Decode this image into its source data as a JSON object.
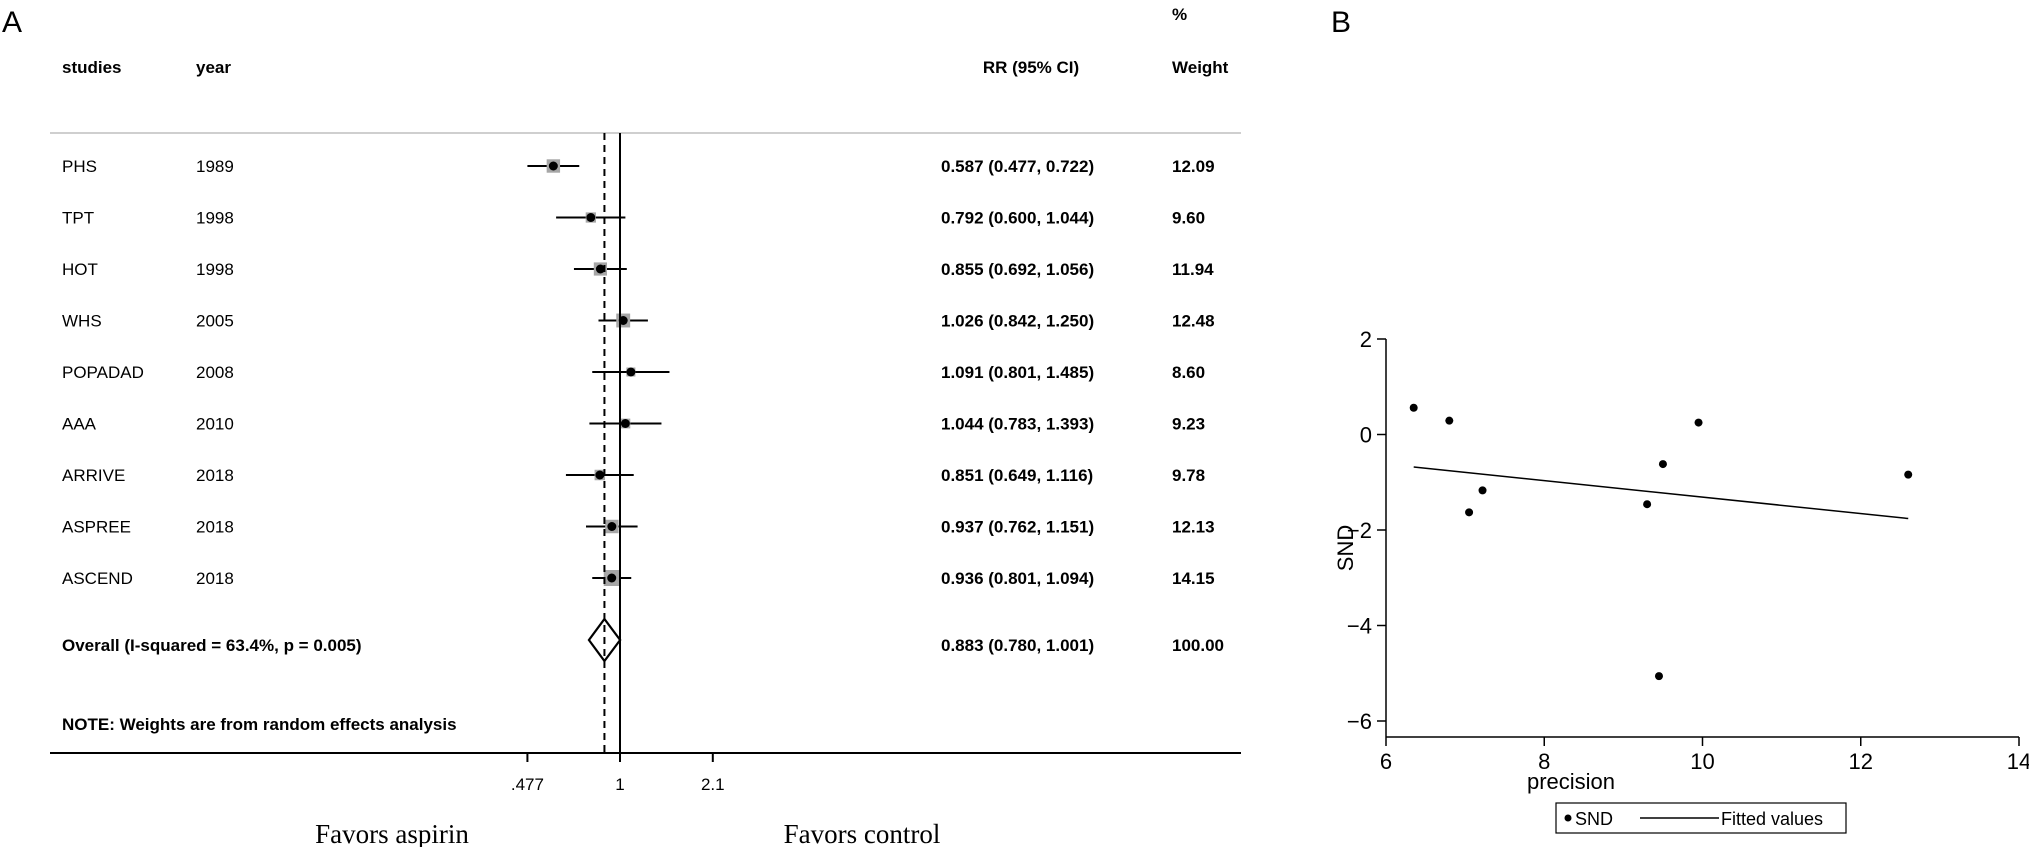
{
  "chart_data": [
    {
      "panel": "A",
      "type": "forest",
      "columns": {
        "studies": "studies",
        "year": "year",
        "rr": "RR (95% CI)",
        "weight_pct": "%",
        "weight": "Weight"
      },
      "rows": [
        {
          "study": "PHS",
          "year": "1989",
          "rr": 0.587,
          "lo": 0.477,
          "hi": 0.722,
          "rr_text": "0.587 (0.477, 0.722)",
          "weight": "12.09"
        },
        {
          "study": "TPT",
          "year": "1998",
          "rr": 0.792,
          "lo": 0.6,
          "hi": 1.044,
          "rr_text": "0.792 (0.600, 1.044)",
          "weight": "9.60"
        },
        {
          "study": "HOT",
          "year": "1998",
          "rr": 0.855,
          "lo": 0.692,
          "hi": 1.056,
          "rr_text": "0.855 (0.692, 1.056)",
          "weight": "11.94"
        },
        {
          "study": "WHS",
          "year": "2005",
          "rr": 1.026,
          "lo": 0.842,
          "hi": 1.25,
          "rr_text": "1.026 (0.842, 1.250)",
          "weight": "12.48"
        },
        {
          "study": "POPADAD",
          "year": "2008",
          "rr": 1.091,
          "lo": 0.801,
          "hi": 1.485,
          "rr_text": "1.091 (0.801, 1.485)",
          "weight": "8.60"
        },
        {
          "study": "AAA",
          "year": "2010",
          "rr": 1.044,
          "lo": 0.783,
          "hi": 1.393,
          "rr_text": "1.044 (0.783, 1.393)",
          "weight": "9.23"
        },
        {
          "study": "ARRIVE",
          "year": "2018",
          "rr": 0.851,
          "lo": 0.649,
          "hi": 1.116,
          "rr_text": "0.851 (0.649, 1.116)",
          "weight": "9.78"
        },
        {
          "study": "ASPREE",
          "year": "2018",
          "rr": 0.937,
          "lo": 0.762,
          "hi": 1.151,
          "rr_text": "0.937 (0.762, 1.151)",
          "weight": "12.13"
        },
        {
          "study": "ASCEND",
          "year": "2018",
          "rr": 0.936,
          "lo": 0.801,
          "hi": 1.094,
          "rr_text": "0.936 (0.801, 1.094)",
          "weight": "14.15"
        }
      ],
      "overall": {
        "label": "Overall  (I-squared = 63.4%, p = 0.005)",
        "rr": 0.883,
        "lo": 0.78,
        "hi": 1.001,
        "rr_text": "0.883 (0.780, 1.001)",
        "weight": "100.00"
      },
      "note": "NOTE: Weights are from random effects analysis",
      "xscale": "log",
      "xticks": [
        0.477,
        1,
        2.1
      ],
      "xtick_labels": [
        ".477",
        "1",
        "2.1"
      ],
      "favors_left": "Favors aspirin",
      "favors_right": "Favors control"
    },
    {
      "panel": "B",
      "type": "scatter",
      "xlabel": "precision",
      "ylabel": "SND",
      "xlim": [
        6,
        14
      ],
      "ylim": [
        -6,
        2
      ],
      "xticks": [
        6,
        8,
        10,
        12,
        14
      ],
      "yticks": [
        2,
        0,
        -2,
        -4,
        -6
      ],
      "ytick_labels": [
        "2",
        "0",
        "−2",
        "−4",
        "−6"
      ],
      "series": [
        {
          "name": "SND",
          "kind": "scatter",
          "points": [
            [
              6.35,
              0.56
            ],
            [
              6.8,
              0.29
            ],
            [
              7.05,
              -1.63
            ],
            [
              7.22,
              -1.17
            ],
            [
              9.3,
              -1.46
            ],
            [
              9.45,
              -5.06
            ],
            [
              9.5,
              -0.62
            ],
            [
              9.95,
              0.25
            ],
            [
              12.6,
              -0.84
            ]
          ]
        },
        {
          "name": "Fitted values",
          "kind": "line",
          "points": [
            [
              6.35,
              -0.68
            ],
            [
              12.6,
              -1.76
            ]
          ]
        }
      ],
      "legend": "bottom"
    }
  ],
  "colors": {
    "ink": "#000000",
    "marker_box": "#a6a6a6",
    "divider": "#bfbfbf"
  }
}
